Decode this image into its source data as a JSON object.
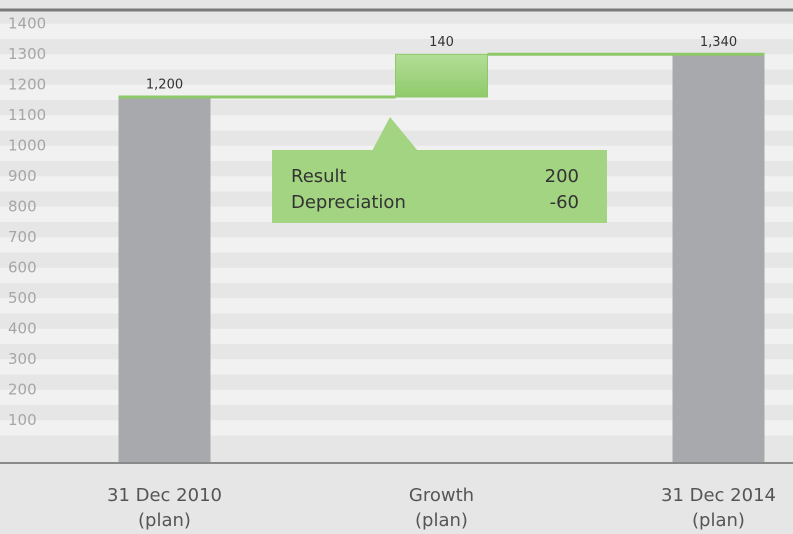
{
  "chart_data": {
    "type": "waterfall",
    "categories": [
      "31 Dec 2010",
      "Growth",
      "31 Dec 2014"
    ],
    "category_sublabels": [
      "(plan)",
      "(plan)",
      "(plan)"
    ],
    "values": [
      1200,
      140,
      1340
    ],
    "value_labels": [
      "1,200",
      "140",
      "1,340"
    ],
    "kinds": [
      "total",
      "change",
      "total"
    ],
    "total_color": "#a7a9ac",
    "change_color": "#97cf74",
    "connector_color": "#8dc869",
    "ylim": [
      0,
      1400
    ],
    "yticks": [
      100,
      200,
      300,
      400,
      500,
      600,
      700,
      800,
      900,
      1000,
      1100,
      1200,
      1300,
      1400
    ],
    "annotation": {
      "rows": [
        {
          "label": "Result",
          "value": 200
        },
        {
          "label": "Depreciation",
          "value": -60
        }
      ]
    }
  }
}
